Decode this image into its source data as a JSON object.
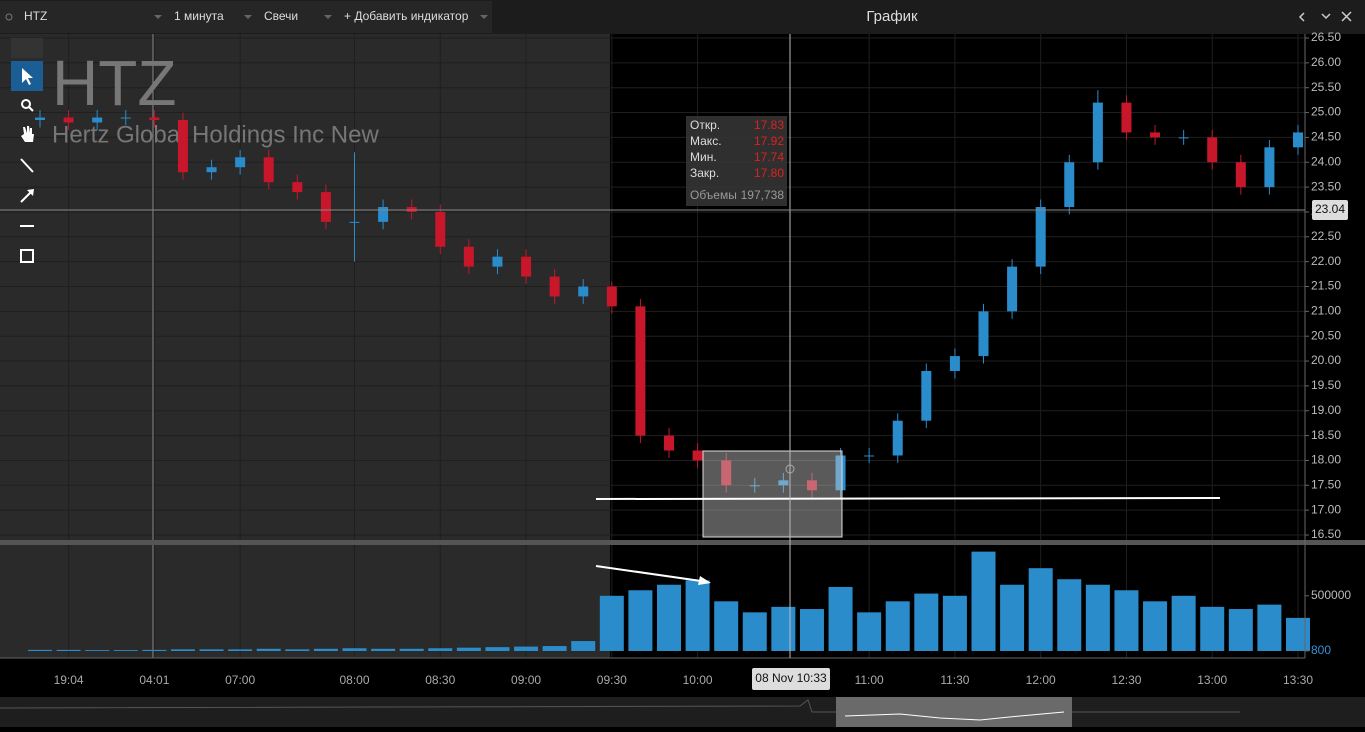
{
  "toolbar": {
    "symbol": "HTZ",
    "interval": "1 минута",
    "style": "Свечи",
    "add_indicator": "+ Добавить индикатор",
    "window_title": "График"
  },
  "chart_data": {
    "type": "candlestick",
    "title": "HTZ",
    "subtitle": "Hertz Global Holdings Inc New",
    "categories": [
      null,
      "19:04",
      null,
      null,
      "04:01",
      null,
      null,
      "07:00",
      null,
      null,
      null,
      "08:00",
      null,
      null,
      "08:30",
      null,
      null,
      "09:00",
      null,
      null,
      "09:30",
      null,
      null,
      "10:00",
      null,
      null,
      null,
      null,
      null,
      "11:00",
      null,
      null,
      "11:30",
      null,
      null,
      "12:00",
      null,
      null,
      "12:30",
      null,
      null,
      "13:00",
      null,
      null,
      "13:30"
    ],
    "open": [
      24.85,
      24.9,
      24.8,
      24.9,
      24.9,
      24.85,
      23.8,
      23.9,
      24.1,
      23.6,
      23.4,
      22.8,
      22.8,
      23.1,
      23.0,
      22.3,
      21.9,
      22.1,
      21.7,
      21.3,
      21.5,
      21.1,
      18.5,
      18.2,
      18.0,
      17.5,
      17.5,
      17.6,
      17.4,
      18.1,
      18.1,
      18.8,
      19.8,
      20.1,
      21.0,
      21.9,
      23.1,
      24.0,
      25.2,
      24.6,
      24.5,
      24.5,
      24.0,
      23.5,
      24.3
    ],
    "high": [
      25.05,
      25.05,
      25.05,
      25.05,
      25.05,
      25.0,
      24.05,
      24.25,
      24.25,
      23.75,
      23.55,
      24.2,
      23.25,
      23.25,
      23.15,
      22.45,
      22.25,
      22.25,
      21.85,
      21.65,
      21.6,
      21.25,
      18.65,
      18.35,
      18.15,
      17.65,
      17.75,
      17.75,
      18.25,
      18.25,
      18.95,
      19.95,
      20.25,
      21.15,
      22.05,
      23.25,
      24.15,
      25.45,
      25.35,
      24.75,
      24.65,
      24.65,
      24.15,
      24.45,
      24.75
    ],
    "low": [
      24.7,
      24.65,
      24.65,
      24.75,
      24.7,
      23.65,
      23.65,
      23.75,
      23.45,
      23.25,
      22.65,
      22.0,
      22.65,
      22.85,
      22.15,
      21.75,
      21.75,
      21.55,
      21.15,
      21.15,
      20.95,
      18.35,
      18.05,
      17.85,
      17.35,
      17.35,
      17.35,
      17.25,
      17.25,
      17.95,
      17.95,
      18.65,
      19.65,
      19.95,
      20.85,
      21.75,
      22.95,
      23.85,
      24.45,
      24.35,
      24.35,
      23.85,
      23.35,
      23.35,
      24.15
    ],
    "close": [
      24.9,
      24.8,
      24.9,
      24.9,
      24.85,
      23.8,
      23.9,
      24.1,
      23.6,
      23.4,
      22.8,
      22.8,
      23.1,
      23.0,
      22.3,
      21.9,
      22.1,
      21.7,
      21.3,
      21.5,
      21.1,
      18.5,
      18.2,
      18.0,
      17.5,
      17.5,
      17.6,
      17.4,
      18.1,
      18.1,
      18.8,
      19.8,
      20.1,
      21.0,
      21.9,
      23.1,
      24.0,
      25.2,
      24.6,
      24.5,
      24.5,
      24.0,
      23.5,
      24.3,
      24.6
    ],
    "color_up": "#2b8ccc",
    "color_down": "#c8162a",
    "ylim": [
      16.5,
      26.5
    ],
    "yticks": [
      {
        "value": 16.5,
        "label": "16.50"
      },
      {
        "value": 17,
        "label": "17.00"
      },
      {
        "value": 17.5,
        "label": "17.50"
      },
      {
        "value": 18,
        "label": "18.00"
      },
      {
        "value": 18.5,
        "label": "18.50"
      },
      {
        "value": 19,
        "label": "19.00"
      },
      {
        "value": 19.5,
        "label": "19.50"
      },
      {
        "value": 20,
        "label": "20.00"
      },
      {
        "value": 20.5,
        "label": "20.50"
      },
      {
        "value": 21,
        "label": "21.00"
      },
      {
        "value": 21.5,
        "label": "21.50"
      },
      {
        "value": 22,
        "label": "22.00"
      },
      {
        "value": 22.5,
        "label": "22.50"
      },
      {
        "value": 23,
        "label": "23.00"
      },
      {
        "value": 23.5,
        "label": "23.50"
      },
      {
        "value": 24,
        "label": "24.00"
      },
      {
        "value": 24.5,
        "label": "24.50"
      },
      {
        "value": 25,
        "label": "25.00"
      },
      {
        "value": 25.5,
        "label": "25.50"
      },
      {
        "value": 26,
        "label": "26.00"
      },
      {
        "value": 26.5,
        "label": "26.50"
      }
    ],
    "grid": true,
    "volume": {
      "color": "#2b8ccc",
      "ylim": [
        0,
        960000
      ],
      "yticks": [
        800,
        500000
      ],
      "values": [
        10000,
        10000,
        8000,
        8000,
        10000,
        15000,
        15000,
        15000,
        20000,
        15000,
        20000,
        25000,
        20000,
        20000,
        25000,
        30000,
        35000,
        40000,
        45000,
        90000,
        500000,
        550000,
        600000,
        640000,
        450000,
        350000,
        400000,
        380000,
        580000,
        350000,
        450000,
        520000,
        500000,
        900000,
        600000,
        750000,
        650000,
        600000,
        550000,
        450000,
        500000,
        400000,
        380000,
        420000,
        300000
      ]
    },
    "crosshair": {
      "price": 23.04,
      "time": "08 Nov 10:33"
    },
    "info": {
      "rows": [
        [
          "Откр.",
          "17.83"
        ],
        [
          "Макс.",
          "17.92"
        ],
        [
          "Мин.",
          "17.74"
        ],
        [
          "Закр.",
          "17.80"
        ]
      ],
      "volume_label": "Объемы",
      "volume_value": "197,738"
    }
  }
}
